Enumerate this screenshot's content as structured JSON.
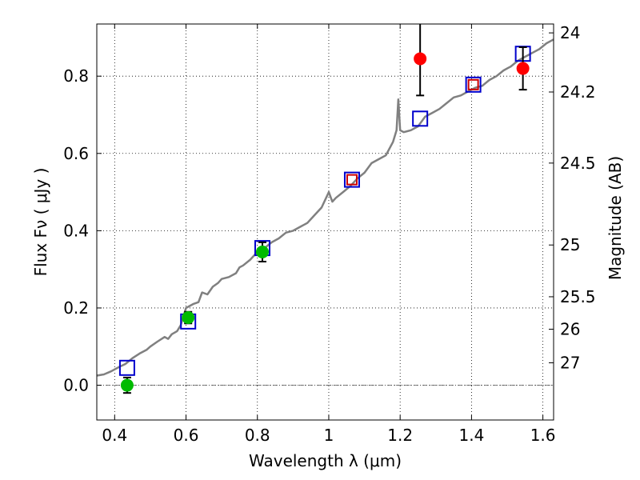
{
  "chart_data": {
    "type": "scatter",
    "xlabel": "Wavelength  λ (μm)",
    "ylabel": "Flux  Fν  ( μJy )",
    "y2label": "Magnitude (AB)",
    "xlim": [
      0.35,
      1.63
    ],
    "ylim": [
      -0.09,
      0.935
    ],
    "grid": true,
    "grid_style": "dotted",
    "x_ticks": [
      0.4,
      0.6,
      0.8,
      1.0,
      1.2,
      1.4,
      1.6
    ],
    "x_tick_labels": [
      "0.4",
      "0.6",
      "0.8",
      "1",
      "1.2",
      "1.4",
      "1.6"
    ],
    "y_ticks": [
      0.0,
      0.2,
      0.4,
      0.6,
      0.8
    ],
    "y_tick_labels": [
      "0.0",
      "0.2",
      "0.4",
      "0.6",
      "0.8"
    ],
    "y2_ticks": [
      {
        "label": "24",
        "flux": 0.912
      },
      {
        "label": "24.2",
        "flux": 0.759
      },
      {
        "label": "24.5",
        "flux": 0.575
      },
      {
        "label": "25",
        "flux": 0.363
      },
      {
        "label": "25.5",
        "flux": 0.229
      },
      {
        "label": "26",
        "flux": 0.145
      },
      {
        "label": "27",
        "flux": 0.058
      }
    ],
    "colors": {
      "spectrum": "#808080",
      "model_box": "#0000cc",
      "model_box_overlap": "#cc0000",
      "green_points": "#00bb00",
      "red_points": "#ff0000",
      "errorbar": "#000000",
      "zero_line": "#555555"
    },
    "spectrum": [
      [
        0.35,
        0.025
      ],
      [
        0.37,
        0.028
      ],
      [
        0.39,
        0.036
      ],
      [
        0.41,
        0.046
      ],
      [
        0.43,
        0.055
      ],
      [
        0.45,
        0.07
      ],
      [
        0.47,
        0.082
      ],
      [
        0.49,
        0.092
      ],
      [
        0.5,
        0.1
      ],
      [
        0.52,
        0.113
      ],
      [
        0.54,
        0.125
      ],
      [
        0.55,
        0.12
      ],
      [
        0.56,
        0.132
      ],
      [
        0.575,
        0.14
      ],
      [
        0.585,
        0.155
      ],
      [
        0.595,
        0.185
      ],
      [
        0.6,
        0.2
      ],
      [
        0.61,
        0.205
      ],
      [
        0.62,
        0.21
      ],
      [
        0.635,
        0.215
      ],
      [
        0.645,
        0.24
      ],
      [
        0.66,
        0.235
      ],
      [
        0.675,
        0.255
      ],
      [
        0.69,
        0.265
      ],
      [
        0.7,
        0.275
      ],
      [
        0.72,
        0.28
      ],
      [
        0.74,
        0.29
      ],
      [
        0.75,
        0.305
      ],
      [
        0.76,
        0.31
      ],
      [
        0.78,
        0.325
      ],
      [
        0.8,
        0.345
      ],
      [
        0.82,
        0.355
      ],
      [
        0.84,
        0.37
      ],
      [
        0.86,
        0.38
      ],
      [
        0.88,
        0.395
      ],
      [
        0.9,
        0.4
      ],
      [
        0.92,
        0.41
      ],
      [
        0.94,
        0.42
      ],
      [
        0.96,
        0.44
      ],
      [
        0.98,
        0.46
      ],
      [
        1.0,
        0.5
      ],
      [
        1.01,
        0.475
      ],
      [
        1.02,
        0.485
      ],
      [
        1.04,
        0.5
      ],
      [
        1.06,
        0.515
      ],
      [
        1.08,
        0.535
      ],
      [
        1.1,
        0.55
      ],
      [
        1.12,
        0.575
      ],
      [
        1.14,
        0.585
      ],
      [
        1.16,
        0.595
      ],
      [
        1.18,
        0.63
      ],
      [
        1.19,
        0.66
      ],
      [
        1.195,
        0.74
      ],
      [
        1.2,
        0.66
      ],
      [
        1.21,
        0.655
      ],
      [
        1.23,
        0.66
      ],
      [
        1.25,
        0.67
      ],
      [
        1.27,
        0.695
      ],
      [
        1.29,
        0.705
      ],
      [
        1.31,
        0.715
      ],
      [
        1.33,
        0.73
      ],
      [
        1.35,
        0.745
      ],
      [
        1.37,
        0.75
      ],
      [
        1.39,
        0.76
      ],
      [
        1.41,
        0.77
      ],
      [
        1.43,
        0.775
      ],
      [
        1.45,
        0.79
      ],
      [
        1.47,
        0.8
      ],
      [
        1.49,
        0.815
      ],
      [
        1.51,
        0.825
      ],
      [
        1.53,
        0.84
      ],
      [
        1.55,
        0.85
      ],
      [
        1.57,
        0.86
      ],
      [
        1.59,
        0.87
      ],
      [
        1.61,
        0.885
      ],
      [
        1.63,
        0.895
      ]
    ],
    "model_boxes": [
      {
        "x": 0.435,
        "y": 0.045,
        "color": "#0000cc"
      },
      {
        "x": 0.606,
        "y": 0.165,
        "color": "#0000cc"
      },
      {
        "x": 0.814,
        "y": 0.355,
        "color": "#0000cc"
      },
      {
        "x": 1.065,
        "y": 0.532,
        "color": "#0000cc"
      },
      {
        "x": 1.065,
        "y": 0.532,
        "color": "#cc0000",
        "inner": true
      },
      {
        "x": 1.256,
        "y": 0.69,
        "color": "#0000cc"
      },
      {
        "x": 1.405,
        "y": 0.778,
        "color": "#0000cc"
      },
      {
        "x": 1.405,
        "y": 0.778,
        "color": "#cc0000",
        "inner": true
      },
      {
        "x": 1.544,
        "y": 0.858,
        "color": "#0000cc"
      }
    ],
    "green_points": [
      {
        "x": 0.435,
        "y": 0.0,
        "err": 0.02
      },
      {
        "x": 0.606,
        "y": 0.175,
        "err": 0.015
      },
      {
        "x": 0.814,
        "y": 0.345,
        "err": 0.025
      }
    ],
    "red_points": [
      {
        "x": 1.256,
        "y": 0.845,
        "err": 0.095
      },
      {
        "x": 1.544,
        "y": 0.82,
        "err": 0.055
      }
    ]
  }
}
